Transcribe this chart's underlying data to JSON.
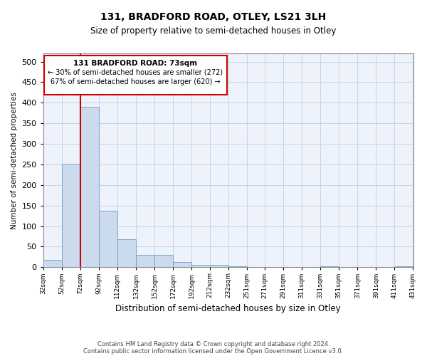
{
  "title": "131, BRADFORD ROAD, OTLEY, LS21 3LH",
  "subtitle": "Size of property relative to semi-detached houses in Otley",
  "xlabel": "Distribution of semi-detached houses by size in Otley",
  "ylabel": "Number of semi-detached properties",
  "footer1": "Contains HM Land Registry data © Crown copyright and database right 2024.",
  "footer2": "Contains public sector information licensed under the Open Government Licence v3.0.",
  "property_label": "131 BRADFORD ROAD: 73sqm",
  "smaller_pct": "← 30% of semi-detached houses are smaller (272)",
  "larger_pct": "67% of semi-detached houses are larger (620) →",
  "property_sqm": 73,
  "bin_starts": [
    32,
    52,
    72,
    92,
    112,
    132,
    152,
    172,
    192,
    212,
    232,
    252,
    271,
    291,
    311,
    331,
    351,
    371,
    391,
    411
  ],
  "bin_width": 20,
  "bin_labels": [
    "32sqm",
    "52sqm",
    "72sqm",
    "92sqm",
    "112sqm",
    "132sqm",
    "152sqm",
    "172sqm",
    "192sqm",
    "212sqm",
    "232sqm",
    "251sqm",
    "271sqm",
    "291sqm",
    "311sqm",
    "331sqm",
    "351sqm",
    "371sqm",
    "391sqm",
    "411sqm",
    "431sqm"
  ],
  "bar_heights": [
    18,
    252,
    390,
    138,
    68,
    30,
    30,
    13,
    6,
    6,
    2,
    0,
    0,
    0,
    0,
    2,
    0,
    0,
    0,
    3
  ],
  "bar_color": "#ccdaed",
  "bar_edge_color": "#6a9fc8",
  "vline_color": "#cc0000",
  "vline_x": 72,
  "annotation_box_color": "#cc0000",
  "grid_color": "#c8d4e8",
  "background_color": "#eef2fa",
  "ylim": [
    0,
    520
  ],
  "yticks": [
    0,
    50,
    100,
    150,
    200,
    250,
    300,
    350,
    400,
    450,
    500
  ],
  "xlim_left": 32,
  "xlim_right": 431
}
